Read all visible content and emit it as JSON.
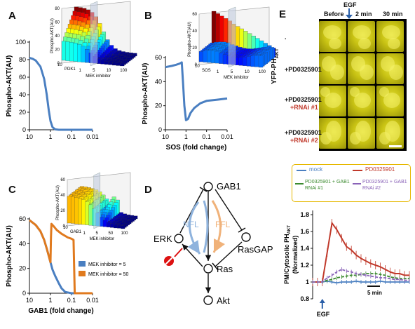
{
  "panels": {
    "A": {
      "letter": "A",
      "ylabel": "Phospho-AKT(AU)",
      "xlabel": "PDK1 (fold change)",
      "yticks": [
        "0",
        "20",
        "40",
        "60",
        "80",
        "100"
      ],
      "xticks": [
        "10",
        "1",
        "0.1",
        "0.01"
      ],
      "inset": {
        "zlabel": "Phospho-AKT(AU)",
        "zticks": [
          "0",
          "20",
          "40",
          "60",
          "80"
        ],
        "ax1": "PDK1",
        "ax1_ticks": [
          "10",
          "10⁻¹"
        ],
        "ax2": "MEK inhibitor",
        "ax2_ticks": [
          "1",
          "5",
          "10",
          "100"
        ]
      }
    },
    "B": {
      "letter": "B",
      "ylabel": "Phospho-AKT(AU)",
      "xlabel": "SOS (fold change)",
      "yticks": [
        "0",
        "20",
        "40",
        "60"
      ],
      "xticks": [
        "10",
        "1",
        "0.1",
        "0.01"
      ],
      "inset": {
        "zlabel": "Phospho-AKT(AU)",
        "zticks": [
          "0",
          "20",
          "40",
          "60"
        ],
        "ax1": "SOS",
        "ax1_ticks": [
          "10",
          "10⁻¹"
        ],
        "ax2": "MEK inhibitor",
        "ax2_ticks": [
          "1",
          "5",
          "10",
          "100"
        ]
      }
    },
    "C": {
      "letter": "C",
      "ylabel": "Phospho-AKT(AU)",
      "xlabel": "GAB1 (fold change)",
      "yticks": [
        "0",
        "20",
        "40",
        "60"
      ],
      "xticks": [
        "10",
        "1",
        "0.1",
        "0.01"
      ],
      "legend": [
        "MEK inhibitor = 5",
        "MEK inhibitor = 50"
      ],
      "inset": {
        "zlabel": "Phospho-AKT(AU)",
        "zticks": [
          "0",
          "20",
          "40",
          "60"
        ],
        "ax1": "GAB1",
        "ax1_ticks": [
          "10",
          "10⁻¹"
        ],
        "ax2": "MEK inhibitor",
        "ax2_ticks": [
          "1",
          "5",
          "50",
          "100"
        ]
      }
    },
    "D": {
      "letter": "D",
      "nodes": [
        "GAB1",
        "ERK",
        "RasGAP",
        "Ras",
        "Akt"
      ],
      "loops": [
        "NFL",
        "FFL"
      ]
    },
    "E": {
      "letter": "E",
      "stimulus": "EGF",
      "timepoints": [
        "Before",
        "2 min",
        "30 min"
      ],
      "ylabel": "YFP-PH",
      "ylabel_sub": "AKT",
      "rows": [
        {
          "line1": ".",
          "line2": ""
        },
        {
          "line1": "+PD0325901",
          "line2": ""
        },
        {
          "line1": "+PD0325901",
          "line2": "+RNAi #1"
        },
        {
          "line1": "+PD0325901",
          "line2": "+RNAi #2"
        }
      ]
    },
    "F": {
      "legend": [
        "mock",
        "PD0325901",
        "PD0325901 + GAB1 RNAi #1",
        "PD0325901 + GAB1 RNAi #2"
      ],
      "ylabel_1": "PM/Cytosolic PH",
      "ylabel_sub": "AKT",
      "ylabel_2": "(Normalized)",
      "yticks": [
        "0.8",
        "1",
        "1.2",
        "1.4",
        "1.6",
        "1.8"
      ],
      "scale_label": "5 min",
      "stimulus": "EGF"
    }
  },
  "chart_data": [
    {
      "type": "line",
      "title": "",
      "xlabel": "PDK1 (fold change)",
      "ylabel": "Phospho-AKT(AU)",
      "xscale": "log-reversed",
      "xlim": [
        10,
        0.01
      ],
      "ylim": [
        0,
        100
      ],
      "series": [
        {
          "x": [
            10,
            7,
            5,
            3,
            2,
            1.5,
            1.2,
            1,
            0.8,
            0.6,
            0.4,
            0.2,
            0.1,
            0.01
          ],
          "y": [
            82,
            81,
            79,
            72,
            58,
            40,
            22,
            10,
            3,
            0.5,
            0,
            0,
            0,
            0
          ]
        }
      ]
    },
    {
      "type": "line",
      "title": "",
      "xlabel": "SOS (fold change)",
      "ylabel": "Phospho-AKT(AU)",
      "xscale": "log-reversed",
      "xlim": [
        10,
        0.01
      ],
      "ylim": [
        0,
        60
      ],
      "series": [
        {
          "x": [
            10,
            5,
            3,
            2,
            1.6,
            1.4,
            1.2,
            1,
            0.8,
            0.6,
            0.4,
            0.2,
            0.1,
            0.03,
            0.01
          ],
          "y": [
            52,
            53,
            54,
            55,
            56,
            40,
            20,
            8,
            9,
            14,
            18,
            22,
            24,
            25,
            26
          ]
        }
      ]
    },
    {
      "type": "line",
      "title": "",
      "xlabel": "GAB1 (fold change)",
      "ylabel": "Phospho-AKT(AU)",
      "xscale": "log-reversed",
      "xlim": [
        10,
        0.01
      ],
      "ylim": [
        0,
        60
      ],
      "series": [
        {
          "name": "MEK inhibitor = 5",
          "x": [
            10,
            5,
            3,
            2,
            1.5,
            1.2,
            1,
            0.8,
            0.6,
            0.4,
            0.3,
            0.2,
            0.1,
            0.01
          ],
          "y": [
            59,
            55,
            50,
            43,
            36,
            30,
            25,
            19,
            14,
            8,
            4,
            1,
            0,
            0
          ]
        },
        {
          "name": "MEK inhibitor = 50",
          "x": [
            10,
            5,
            3,
            2,
            1.5,
            1.2,
            1,
            0.95,
            0.9,
            0.7,
            0.5,
            0.3,
            0.15,
            0.1,
            0.08,
            0.07,
            0.01
          ],
          "y": [
            59,
            55,
            50,
            43,
            36,
            30,
            25,
            45,
            56,
            54,
            51,
            48,
            45,
            44,
            43,
            0,
            0
          ]
        }
      ]
    },
    {
      "type": "line",
      "title": "",
      "xlabel": "",
      "ylabel": "PM/Cytosolic PH AKT (Normalized)",
      "ylim": [
        0.8,
        1.85
      ],
      "series": [
        {
          "name": "mock",
          "x": [
            0,
            2,
            4,
            6,
            8,
            10,
            12,
            14,
            16,
            18,
            20,
            22,
            24,
            26,
            28,
            30,
            32,
            34,
            36,
            38,
            40
          ],
          "y": [
            1,
            1,
            1,
            1.01,
            1,
            0.99,
            1,
            1,
            1,
            1.01,
            1,
            1,
            1,
            1,
            1.01,
            1,
            1,
            1,
            1,
            1,
            1
          ]
        },
        {
          "name": "PD0325901",
          "x": [
            0,
            2,
            4,
            6,
            8,
            10,
            12,
            14,
            16,
            18,
            20,
            22,
            24,
            26,
            28,
            30,
            32,
            34,
            36,
            38,
            40
          ],
          "y": [
            1,
            1,
            1,
            1.35,
            1.7,
            1.62,
            1.52,
            1.42,
            1.38,
            1.32,
            1.28,
            1.25,
            1.22,
            1.2,
            1.18,
            1.15,
            1.12,
            1.1,
            1.1,
            1.08,
            1.08
          ]
        },
        {
          "name": "PD0325901 + GAB1 RNAi #1",
          "x": [
            0,
            2,
            4,
            6,
            8,
            10,
            12,
            14,
            16,
            18,
            20,
            22,
            24,
            26,
            28,
            30,
            32,
            34,
            36,
            38,
            40
          ],
          "y": [
            1,
            1,
            1,
            1.02,
            1.03,
            1.05,
            1.06,
            1.07,
            1.08,
            1.08,
            1.09,
            1.1,
            1.1,
            1.1,
            1.09,
            1.08,
            1.06,
            1.05,
            1.04,
            1.04,
            1.04
          ]
        },
        {
          "name": "PD0325901 + GAB1 RNAi #2",
          "x": [
            0,
            2,
            4,
            6,
            8,
            10,
            12,
            14,
            16,
            18,
            20,
            22,
            24,
            26,
            28,
            30,
            32,
            34,
            36,
            38,
            40
          ],
          "y": [
            1,
            1,
            1,
            1.05,
            1.08,
            1.12,
            1.15,
            1.13,
            1.12,
            1.1,
            1.09,
            1.08,
            1.07,
            1.06,
            1.05,
            1.05,
            1.04,
            1.03,
            1.03,
            1.02,
            1.02
          ]
        }
      ]
    }
  ],
  "colors": {
    "blue": "#4a7fc1",
    "orange": "#e07a1e",
    "red": "#c0392b",
    "green": "#3b8a2e",
    "purple": "#8a63b8",
    "legendBorder": "#e6b800"
  }
}
